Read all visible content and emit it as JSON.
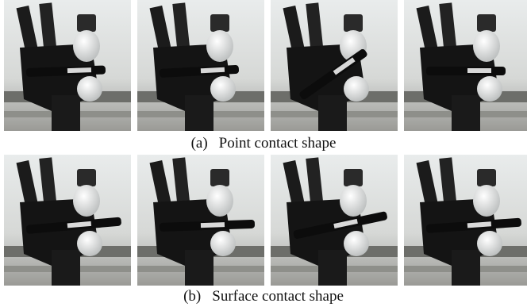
{
  "rows": [
    {
      "label": "(a)",
      "caption": "Point contact shape"
    },
    {
      "label": "(b)",
      "caption": "Surface contact shape"
    }
  ]
}
